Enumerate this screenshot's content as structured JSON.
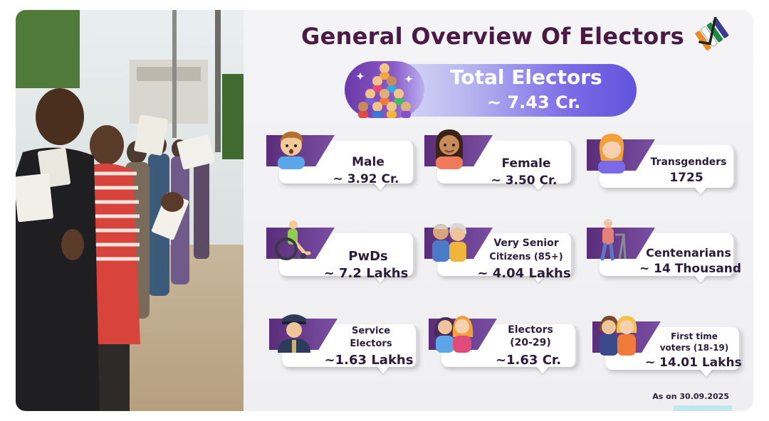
{
  "title": "General Overview Of Electors",
  "total": {
    "label": "Total Electors",
    "value": "~ 7.43 Cr."
  },
  "cards": [
    {
      "label": "Male",
      "value": "~ 3.92 Cr.",
      "icon": "male-person-icon"
    },
    {
      "label": "Female",
      "value": "~ 3.50 Cr.",
      "icon": "female-person-icon"
    },
    {
      "label": "Transgenders",
      "value": "1725",
      "icon": "transgender-person-icon"
    },
    {
      "label": "PwDs",
      "value": "~ 7.2 Lakhs",
      "icon": "wheelchair-icon"
    },
    {
      "label": "Very Senior",
      "label2": "Citizens (85+)",
      "value": "~ 4.04 Lakhs",
      "icon": "elderly-couple-icon"
    },
    {
      "label": "Centenarians",
      "value": "~ 14 Thousand",
      "icon": "elderly-walker-icon"
    },
    {
      "label": "Service",
      "label2": "Electors",
      "value": "~1.63 Lakhs",
      "icon": "soldier-icon"
    },
    {
      "label": "Electors",
      "label2": "(20-29)",
      "value": "~1.63 Cr.",
      "icon": "young-women-icon"
    },
    {
      "label": "First time",
      "label2": "voters (18-19)",
      "value": "~ 14.01 Lakhs",
      "icon": "first-time-voters-icon"
    }
  ],
  "as_of": "As on 30.09.2025",
  "colors": {
    "title": "#4a1a45",
    "tab": "#5a2d7a",
    "pill": "#6154db",
    "text": "#2a1c3a"
  }
}
